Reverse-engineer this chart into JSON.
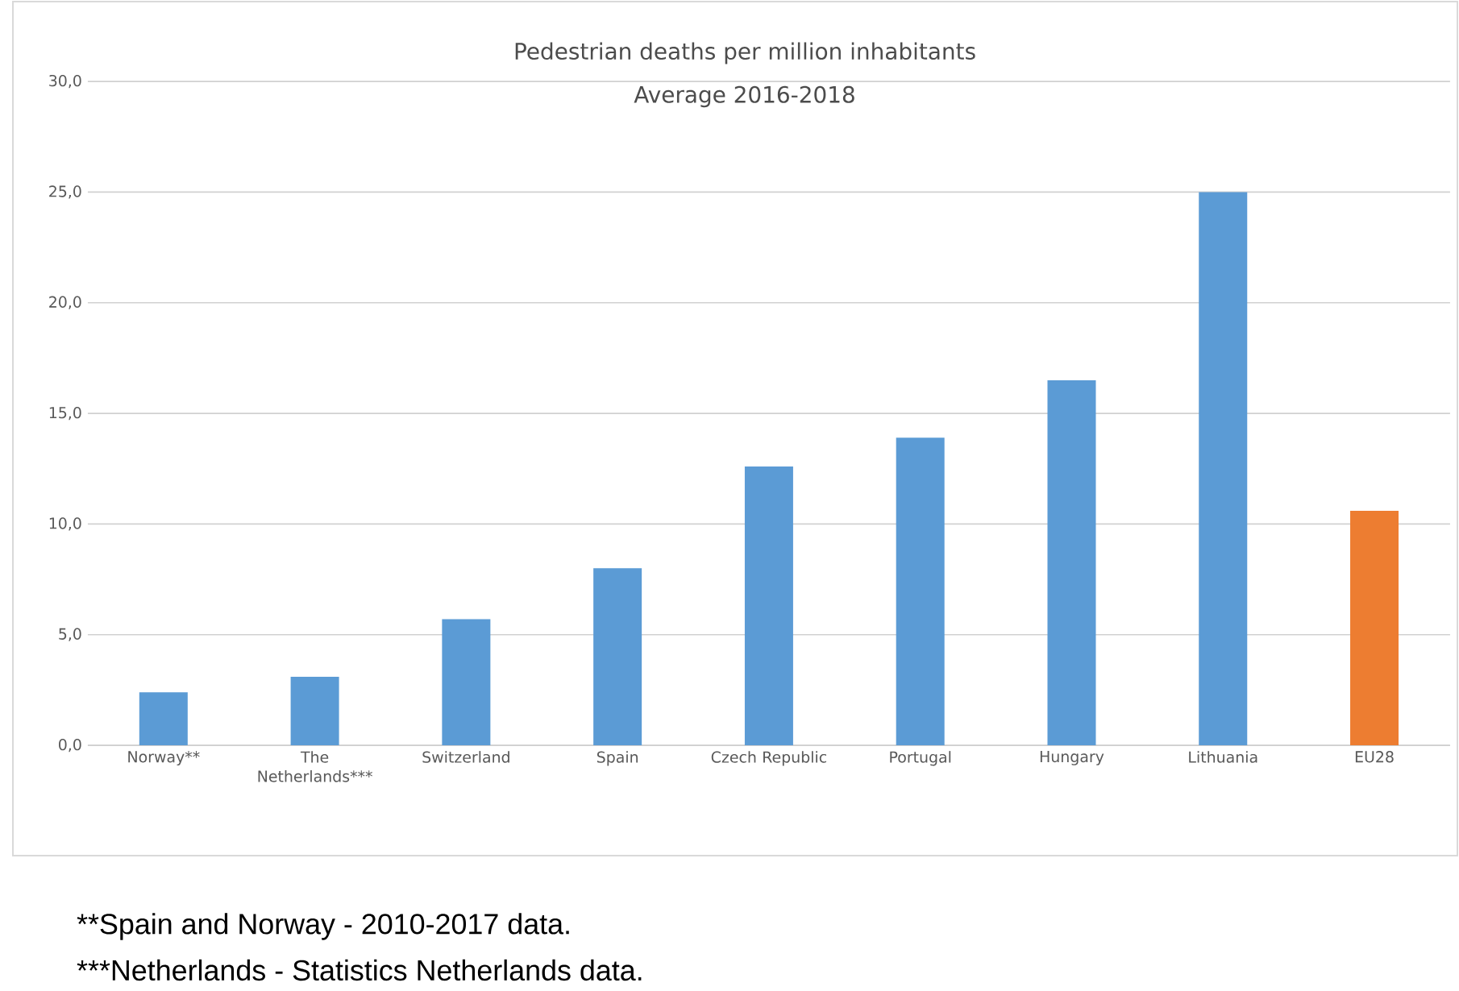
{
  "chart_data": {
    "type": "bar",
    "title": "Pedestrian deaths per million inhabitants",
    "subtitle": "Average 2016-2018",
    "categories": [
      "Norway**",
      "The Netherlands***",
      "Switzerland",
      "Spain",
      "Czech Republic",
      "Portugal",
      "Hungary",
      "Lithuania",
      "EU28"
    ],
    "values": [
      2.4,
      3.1,
      5.7,
      8.0,
      12.6,
      13.9,
      16.5,
      25.0,
      10.6
    ],
    "colors": [
      "#5b9bd5",
      "#5b9bd5",
      "#5b9bd5",
      "#5b9bd5",
      "#5b9bd5",
      "#5b9bd5",
      "#5b9bd5",
      "#5b9bd5",
      "#ed7d31"
    ],
    "ylim": [
      0,
      30
    ],
    "yticks": [
      {
        "value": 0,
        "label": "0,0"
      },
      {
        "value": 5,
        "label": "5,0"
      },
      {
        "value": 10,
        "label": "10,0"
      },
      {
        "value": 15,
        "label": "15,0"
      },
      {
        "value": 20,
        "label": "20,0"
      },
      {
        "value": 25,
        "label": "25,0"
      },
      {
        "value": 30,
        "label": "30,0"
      }
    ],
    "grid": "y",
    "annotations": [
      "**Spain and Norway - 2010-2017 data.",
      "***Netherlands - Statistics Netherlands data."
    ]
  }
}
